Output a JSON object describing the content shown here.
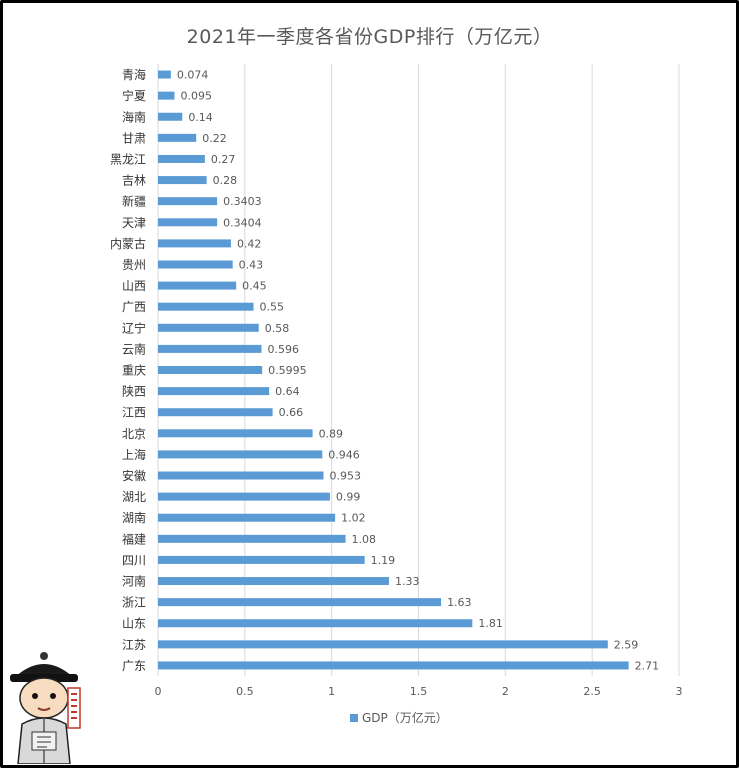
{
  "chart_data": {
    "type": "bar",
    "orientation": "horizontal",
    "title": "2021年一季度各省份GDP排行（万亿元）",
    "categories": [
      "青海",
      "宁夏",
      "海南",
      "甘肃",
      "黑龙江",
      "吉林",
      "新疆",
      "天津",
      "内蒙古",
      "贵州",
      "山西",
      "广西",
      "辽宁",
      "云南",
      "重庆",
      "陕西",
      "江西",
      "北京",
      "上海",
      "安徽",
      "湖北",
      "湖南",
      "福建",
      "四川",
      "河南",
      "浙江",
      "山东",
      "江苏",
      "广东"
    ],
    "category_labels": [
      "青海",
      "宁夏",
      "海南",
      "甘肃",
      "黑龙江",
      "吉林",
      "新疆",
      "天津",
      "内蒙古",
      "贵州",
      "山西",
      "广西",
      "辽宁",
      "云南",
      "重庆",
      "陕西",
      "江西",
      "北京",
      "上海",
      "安徽",
      "湖北",
      "湖南",
      "福建",
      "四川",
      "河南",
      "浙江",
      "山东",
      "江苏",
      "广东"
    ],
    "series": [
      {
        "name": "GDP（万亿元）",
        "values": [
          0.074,
          0.095,
          0.14,
          0.22,
          0.27,
          0.28,
          0.3403,
          0.3404,
          0.42,
          0.43,
          0.45,
          0.55,
          0.58,
          0.596,
          0.5995,
          0.64,
          0.66,
          0.89,
          0.946,
          0.953,
          0.99,
          1.02,
          1.08,
          1.19,
          1.33,
          1.63,
          1.81,
          2.59,
          2.71
        ],
        "value_labels": [
          "0.074",
          "0.095",
          "0.14",
          "0.22",
          "0.27",
          "0.28",
          "0.3403",
          "0.3404",
          "0.42",
          "0.43",
          "0.45",
          "0.55",
          "0.58",
          "0.596",
          "0.5995",
          "0.64",
          "0.66",
          "0.89",
          "0.946",
          "0.953",
          "0.99",
          "1.02",
          "1.08",
          "1.19",
          "1.33",
          "1.63",
          "1.81",
          "2.59",
          "2.71"
        ],
        "color": "#5b9bd5"
      }
    ],
    "x_ticks": [
      "0",
      "0.5",
      "1",
      "1.5",
      "2",
      "2.5",
      "3"
    ],
    "xlim": [
      0,
      3
    ],
    "grid": true,
    "legend": {
      "position": "bottom",
      "label": "GDP（万亿元）"
    },
    "colors": {
      "bar": "#5b9bd5",
      "grid": "#d9d9d9",
      "text": "#595959",
      "title": "#595959"
    }
  },
  "decoration": {
    "avatar_icon": "cartoon-scholar-avatar-icon",
    "seal_text": "百家说财经"
  }
}
